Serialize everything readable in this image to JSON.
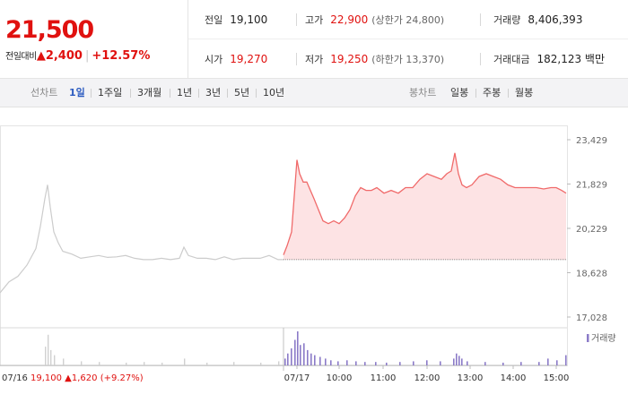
{
  "header": {
    "price": "21,500",
    "change_label": "전일대비",
    "change_arrow": "▲",
    "change_amount": "2,400",
    "change_pct": "+12.57%",
    "stats": {
      "prev_close": {
        "label": "전일",
        "value": "19,100"
      },
      "high": {
        "label": "고가",
        "value": "22,900",
        "sub": "(상한가 24,800)"
      },
      "volume": {
        "label": "거래량",
        "value": "8,406,393"
      },
      "open": {
        "label": "시가",
        "value": "19,270"
      },
      "low": {
        "label": "저가",
        "value": "19,250",
        "sub": "(하한가 13,370)"
      },
      "turnover": {
        "label": "거래대금",
        "value": "182,123 백만"
      }
    }
  },
  "toolbar": {
    "line_chart_label": "선차트",
    "line_periods": [
      "1일",
      "1주일",
      "3개월",
      "1년",
      "3년",
      "5년",
      "10년"
    ],
    "active_period": "1일",
    "candle_chart_label": "봉차트",
    "candle_periods": [
      "일봉",
      "주봉",
      "월봉"
    ]
  },
  "colors": {
    "up": "#e0110f",
    "today_line": "#f06a6a",
    "today_fill": "#fde3e4",
    "prev_line": "#cccccc",
    "volume_today": "#8b7bc8",
    "volume_prev": "#d0d0d0",
    "arrow_blue": "#2d5cc0"
  },
  "chart_data": {
    "type": "line",
    "y_ticks": [
      "23,429",
      "21,829",
      "20,229",
      "18,628",
      "17,028"
    ],
    "y_tick_values": [
      23429,
      21829,
      20229,
      18628,
      17028
    ],
    "ylim": [
      17028,
      23429
    ],
    "baseline": 19100,
    "x_labels": [
      "07/17",
      "10:00",
      "11:00",
      "12:00",
      "13:00",
      "14:00",
      "15:00"
    ],
    "volume_legend": "거래량",
    "prev_day": {
      "date": "07/16",
      "close": "19,100",
      "arrow": "▲",
      "change": "1,620",
      "change_pct": "(+9.27%)",
      "x": [
        0,
        10,
        20,
        30,
        40,
        45,
        50,
        53,
        56,
        60,
        65,
        70,
        80,
        90,
        100,
        110,
        120,
        130,
        140,
        150,
        160,
        170,
        180,
        190,
        200,
        205,
        210,
        220,
        230,
        240,
        250,
        260,
        270,
        280,
        290,
        300,
        310,
        316
      ],
      "y": [
        17900,
        18300,
        18500,
        18900,
        19500,
        20300,
        21300,
        21800,
        21000,
        20100,
        19700,
        19400,
        19300,
        19150,
        19200,
        19250,
        19180,
        19200,
        19250,
        19150,
        19100,
        19100,
        19150,
        19100,
        19150,
        19550,
        19250,
        19150,
        19150,
        19100,
        19200,
        19100,
        19150,
        19150,
        19150,
        19250,
        19100,
        19100
      ]
    },
    "series": [
      {
        "name": "07/17",
        "x": [
          316,
          320,
          325,
          328,
          331,
          334,
          338,
          342,
          346,
          350,
          355,
          360,
          366,
          372,
          378,
          384,
          390,
          396,
          402,
          408,
          414,
          420,
          428,
          436,
          444,
          452,
          460,
          468,
          476,
          484,
          492,
          498,
          503,
          507,
          511,
          515,
          520,
          526,
          534,
          542,
          550,
          558,
          566,
          574,
          582,
          590,
          598,
          606,
          614,
          620,
          626,
          631
        ],
        "y": [
          19270,
          19600,
          20100,
          21400,
          22700,
          22200,
          21900,
          21900,
          21600,
          21300,
          20900,
          20500,
          20400,
          20500,
          20400,
          20600,
          20900,
          21400,
          21700,
          21600,
          21600,
          21700,
          21500,
          21600,
          21500,
          21700,
          21700,
          22000,
          22200,
          22100,
          22000,
          22200,
          22300,
          22950,
          22200,
          21800,
          21700,
          21800,
          22100,
          22200,
          22100,
          22000,
          21800,
          21700,
          21700,
          21700,
          21700,
          21650,
          21700,
          21700,
          21600,
          21500
        ]
      }
    ],
    "volume": {
      "prev_x": [
        50,
        53,
        56,
        60,
        70,
        90,
        110,
        140,
        160,
        180,
        205,
        230,
        260,
        290,
        310
      ],
      "prev_v": [
        0.55,
        0.9,
        0.45,
        0.3,
        0.2,
        0.12,
        0.1,
        0.08,
        0.1,
        0.08,
        0.2,
        0.08,
        0.1,
        0.08,
        0.12
      ],
      "today_x": [
        317,
        320,
        324,
        328,
        331,
        334,
        338,
        342,
        346,
        350,
        356,
        362,
        368,
        376,
        386,
        396,
        406,
        418,
        430,
        445,
        460,
        475,
        490,
        505,
        508,
        511,
        514,
        520,
        540,
        560,
        580,
        600,
        610,
        620,
        630
      ],
      "today_v": [
        0.2,
        0.35,
        0.5,
        0.75,
        1.0,
        0.6,
        0.65,
        0.45,
        0.35,
        0.3,
        0.25,
        0.2,
        0.15,
        0.12,
        0.15,
        0.12,
        0.1,
        0.1,
        0.08,
        0.1,
        0.12,
        0.15,
        0.12,
        0.2,
        0.35,
        0.28,
        0.2,
        0.12,
        0.1,
        0.08,
        0.1,
        0.1,
        0.2,
        0.15,
        0.3
      ]
    }
  }
}
